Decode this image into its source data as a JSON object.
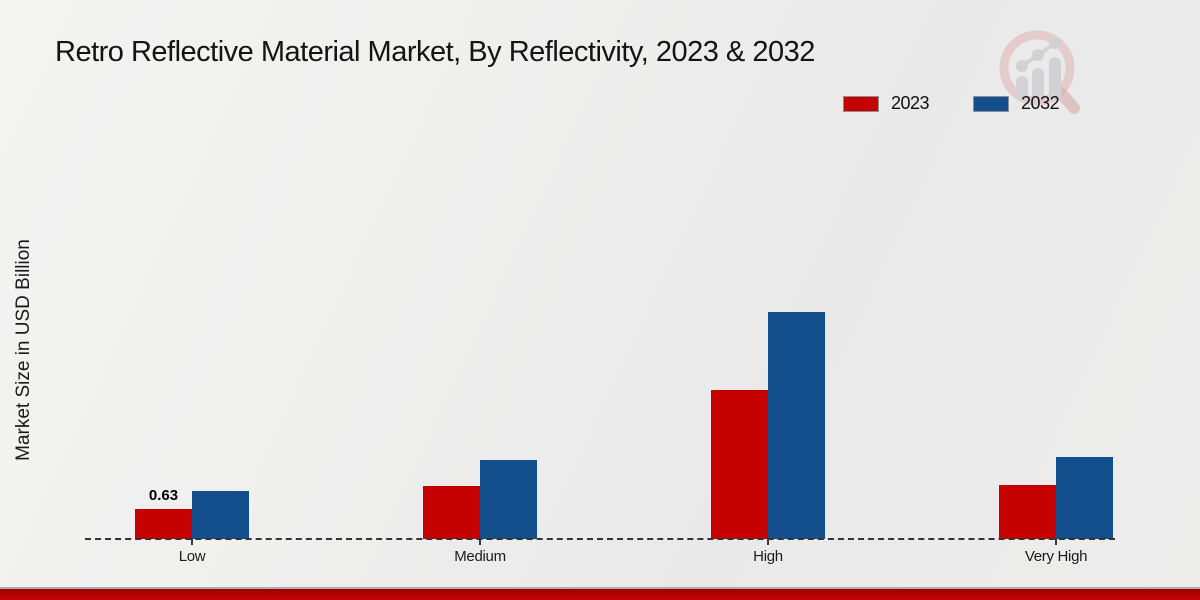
{
  "title": "Retro Reflective Material Market, By Reflectivity, 2023 & 2032",
  "ylabel": "Market Size in USD Billion",
  "legend": {
    "items": [
      {
        "label": "2023",
        "color": "#c40000"
      },
      {
        "label": "2032",
        "color": "#134f8c"
      }
    ]
  },
  "footer": {
    "stripe_color": "#c40404"
  },
  "watermark": {
    "name": "market-research-magnifier-logo",
    "ring_color": "#ddb9b9",
    "bars_color": "#d2d2d5"
  },
  "chart_data": {
    "type": "bar",
    "title": "Retro Reflective Material Market, By Reflectivity, 2023 & 2032",
    "xlabel": "",
    "ylabel": "Market Size in USD Billion",
    "categories": [
      "Low",
      "Medium",
      "High",
      "Very High"
    ],
    "series": [
      {
        "name": "2023",
        "color": "#c40000",
        "values": [
          0.63,
          1.09,
          3.07,
          1.11
        ],
        "labels": [
          "0.63",
          "",
          "",
          ""
        ]
      },
      {
        "name": "2032",
        "color": "#134f8c",
        "values": [
          1.0,
          1.64,
          4.69,
          1.69
        ],
        "labels": [
          "",
          "",
          "",
          ""
        ]
      }
    ],
    "ylim": [
      0,
      5
    ],
    "grid": false,
    "axis_style": "dashed-baseline-only",
    "legend_position": "top-right"
  }
}
